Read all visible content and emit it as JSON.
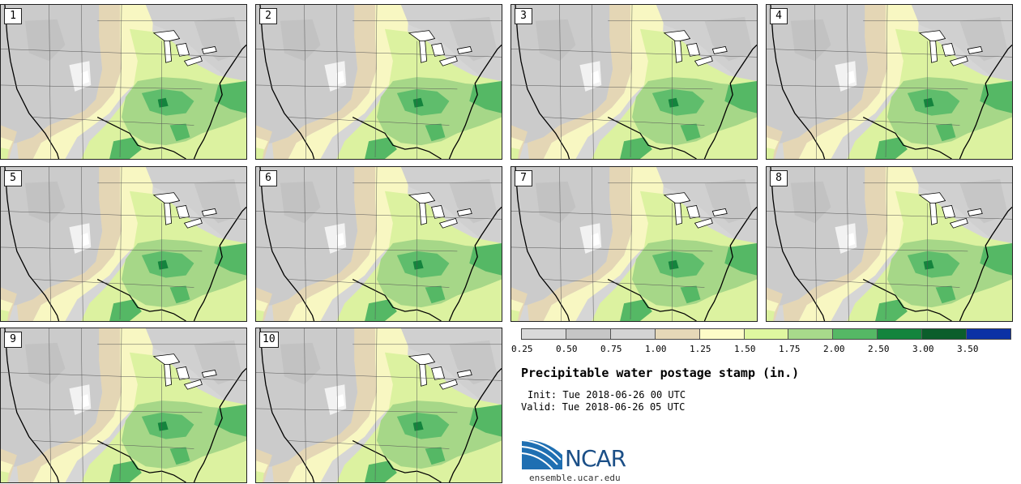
{
  "panels": [
    {
      "label": "1"
    },
    {
      "label": "2"
    },
    {
      "label": "3"
    },
    {
      "label": "4"
    },
    {
      "label": "5"
    },
    {
      "label": "6"
    },
    {
      "label": "7"
    },
    {
      "label": "8"
    },
    {
      "label": "9"
    },
    {
      "label": "10"
    }
  ],
  "legend": {
    "colors": [
      "#d9d9d9",
      "#c6c6c6",
      "#d4d4d4",
      "#e6d8b8",
      "#fdfcc8",
      "#dff7a0",
      "#a8d98b",
      "#55b865",
      "#14843d",
      "#0b5e2b",
      "#0b31a5"
    ],
    "ticks": [
      "0.25",
      "0.50",
      "0.75",
      "1.00",
      "1.25",
      "1.50",
      "1.75",
      "2.00",
      "2.50",
      "3.00",
      "3.50"
    ]
  },
  "title": "Precipitable water postage stamp (in.)",
  "init": "Init: Tue 2018-06-26 00 UTC",
  "valid": "Valid: Tue 2018-06-26 05 UTC",
  "logo": {
    "text": "NCAR"
  },
  "site": "ensemble.ucar.edu"
}
